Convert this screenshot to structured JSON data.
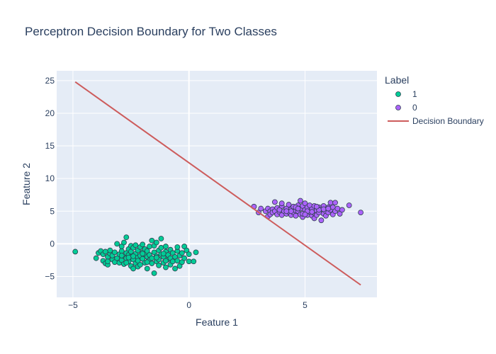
{
  "chart_data": {
    "type": "scatter",
    "title": "Perceptron Decision Boundary for Two Classes",
    "xlabel": "Feature 1",
    "ylabel": "Feature 2",
    "xlim": [
      -5.7,
      8.1
    ],
    "ylim": [
      -8.2,
      26.5
    ],
    "x_ticks": [
      -5,
      0,
      5
    ],
    "y_ticks": [
      -5,
      0,
      5,
      10,
      15,
      20,
      25
    ],
    "grid": true,
    "legend": {
      "title": "Label",
      "position": "right"
    },
    "colors": {
      "class_1": "#00cc96",
      "class_0": "#ab63fa",
      "boundary": "#cd5c5c",
      "plot_bg": "#e5ecf6",
      "marker_edge": "#2f3f4f"
    },
    "series": [
      {
        "name": "1",
        "mode": "markers",
        "color": "#00cc96",
        "points": [
          [
            -4.9,
            -1.2
          ],
          [
            -4.0,
            -2.2
          ],
          [
            -3.9,
            -1.4
          ],
          [
            -3.8,
            -1.1
          ],
          [
            -3.7,
            -2.6
          ],
          [
            -3.7,
            -1.6
          ],
          [
            -3.6,
            -3.0
          ],
          [
            -3.6,
            -1.2
          ],
          [
            -3.5,
            -2.0
          ],
          [
            -3.5,
            -3.2
          ],
          [
            -3.4,
            -1.5
          ],
          [
            -3.4,
            -1.0
          ],
          [
            -3.3,
            -2.4
          ],
          [
            -3.3,
            -1.8
          ],
          [
            -3.2,
            -2.8
          ],
          [
            -3.2,
            -1.3
          ],
          [
            -3.1,
            0.0
          ],
          [
            -3.1,
            -2.2
          ],
          [
            -3.0,
            -1.6
          ],
          [
            -3.0,
            -2.9
          ],
          [
            -2.9,
            -1.1
          ],
          [
            -2.9,
            -0.4
          ],
          [
            -2.9,
            -2.5
          ],
          [
            -2.8,
            0.2
          ],
          [
            -2.8,
            -1.9
          ],
          [
            -2.8,
            -3.1
          ],
          [
            -2.7,
            -1.4
          ],
          [
            -2.7,
            1.0
          ],
          [
            -2.7,
            -2.2
          ],
          [
            -2.6,
            -0.8
          ],
          [
            -2.6,
            -2.7
          ],
          [
            -2.6,
            -1.7
          ],
          [
            -2.5,
            -0.3
          ],
          [
            -2.5,
            -3.4
          ],
          [
            -2.5,
            -2.0
          ],
          [
            -2.5,
            -1.2
          ],
          [
            -2.4,
            -3.8
          ],
          [
            -2.4,
            -0.6
          ],
          [
            -2.4,
            -2.4
          ],
          [
            -2.3,
            -1.5
          ],
          [
            -2.3,
            -3.0
          ],
          [
            -2.3,
            -0.2
          ],
          [
            -2.2,
            -2.1
          ],
          [
            -2.2,
            -1.0
          ],
          [
            -2.2,
            -3.5
          ],
          [
            -2.2,
            -2.6
          ],
          [
            -2.1,
            -0.5
          ],
          [
            -2.1,
            -1.8
          ],
          [
            -2.1,
            -3.2
          ],
          [
            -2.0,
            -1.3
          ],
          [
            -2.0,
            -2.3
          ],
          [
            -2.0,
            -0.1
          ],
          [
            -1.9,
            -2.9
          ],
          [
            -1.9,
            -1.6
          ],
          [
            -1.9,
            -0.8
          ],
          [
            -1.8,
            -3.8
          ],
          [
            -1.8,
            -2.0
          ],
          [
            -1.8,
            -1.1
          ],
          [
            -1.7,
            -2.5
          ],
          [
            -1.7,
            -0.4
          ],
          [
            -1.7,
            -1.7
          ],
          [
            -1.6,
            0.5
          ],
          [
            -1.6,
            -3.0
          ],
          [
            -1.6,
            -2.2
          ],
          [
            -1.5,
            -4.5
          ],
          [
            -1.5,
            -1.3
          ],
          [
            -1.5,
            -0.3
          ],
          [
            -1.4,
            -2.7
          ],
          [
            -1.4,
            0.2
          ],
          [
            -1.4,
            -1.9
          ],
          [
            -1.3,
            -3.3
          ],
          [
            -1.3,
            -1.0
          ],
          [
            -1.3,
            -2.4
          ],
          [
            -1.2,
            0.8
          ],
          [
            -1.2,
            -1.6
          ],
          [
            -1.2,
            -0.6
          ],
          [
            -1.1,
            -2.9
          ],
          [
            -1.1,
            -2.0
          ],
          [
            -1.0,
            -3.6
          ],
          [
            -1.0,
            -1.2
          ],
          [
            -1.0,
            -0.4
          ],
          [
            -0.9,
            -2.4
          ],
          [
            -0.9,
            -1.7
          ],
          [
            -0.8,
            -3.2
          ],
          [
            -0.8,
            -0.9
          ],
          [
            -0.8,
            -2.2
          ],
          [
            -0.7,
            -2.7
          ],
          [
            -0.7,
            -1.4
          ],
          [
            -0.6,
            -3.8
          ],
          [
            -0.6,
            -2.0
          ],
          [
            -0.5,
            -1.1
          ],
          [
            -0.5,
            -2.6
          ],
          [
            -0.5,
            -0.5
          ],
          [
            -0.4,
            -3.4
          ],
          [
            -0.4,
            -1.8
          ],
          [
            -0.3,
            -2.8
          ],
          [
            -0.3,
            -1.4
          ],
          [
            -0.2,
            -2.2
          ],
          [
            -0.2,
            -0.4
          ],
          [
            -0.1,
            -1.0
          ],
          [
            0.0,
            -2.7
          ],
          [
            0.0,
            -1.6
          ],
          [
            0.2,
            -2.7
          ],
          [
            0.3,
            -1.3
          ],
          [
            -2.6,
            -2.1
          ],
          [
            -2.0,
            -1.5
          ],
          [
            -1.4,
            -2.1
          ],
          [
            -2.9,
            -1.8
          ],
          [
            -3.5,
            -2.7
          ],
          [
            -1.1,
            -1.5
          ],
          [
            -2.4,
            -1.9
          ],
          [
            -1.8,
            -2.8
          ],
          [
            -2.7,
            -2.9
          ],
          [
            -1.0,
            -2.6
          ]
        ]
      },
      {
        "name": "0",
        "mode": "markers",
        "color": "#ab63fa",
        "points": [
          [
            2.8,
            5.7
          ],
          [
            3.0,
            4.8
          ],
          [
            3.1,
            5.4
          ],
          [
            3.3,
            5.0
          ],
          [
            3.4,
            4.2
          ],
          [
            3.4,
            5.4
          ],
          [
            3.5,
            5.0
          ],
          [
            3.5,
            4.5
          ],
          [
            3.6,
            5.3
          ],
          [
            3.6,
            4.8
          ],
          [
            3.7,
            6.4
          ],
          [
            3.7,
            5.0
          ],
          [
            3.8,
            4.5
          ],
          [
            3.8,
            5.5
          ],
          [
            3.9,
            4.9
          ],
          [
            3.9,
            5.2
          ],
          [
            4.0,
            4.4
          ],
          [
            4.0,
            5.8
          ],
          [
            4.0,
            6.2
          ],
          [
            4.1,
            5.0
          ],
          [
            4.2,
            4.6
          ],
          [
            4.2,
            5.4
          ],
          [
            4.3,
            4.9
          ],
          [
            4.3,
            6.0
          ],
          [
            4.4,
            4.4
          ],
          [
            4.4,
            5.3
          ],
          [
            4.5,
            5.7
          ],
          [
            4.5,
            4.8
          ],
          [
            4.6,
            5.1
          ],
          [
            4.6,
            4.3
          ],
          [
            4.7,
            5.9
          ],
          [
            4.7,
            5.0
          ],
          [
            4.8,
            4.5
          ],
          [
            4.8,
            6.6
          ],
          [
            4.8,
            5.4
          ],
          [
            4.9,
            4.1
          ],
          [
            4.9,
            5.8
          ],
          [
            5.0,
            4.8
          ],
          [
            5.0,
            5.2
          ],
          [
            5.0,
            6.2
          ],
          [
            5.1,
            4.4
          ],
          [
            5.1,
            5.6
          ],
          [
            5.2,
            4.9
          ],
          [
            5.2,
            5.9
          ],
          [
            5.3,
            4.3
          ],
          [
            5.3,
            5.3
          ],
          [
            5.4,
            4.7
          ],
          [
            5.4,
            5.8
          ],
          [
            5.4,
            3.9
          ],
          [
            5.5,
            5.1
          ],
          [
            5.5,
            4.4
          ],
          [
            5.6,
            5.6
          ],
          [
            5.6,
            4.8
          ],
          [
            5.7,
            3.6
          ],
          [
            5.7,
            5.3
          ],
          [
            5.8,
            4.6
          ],
          [
            5.8,
            5.8
          ],
          [
            5.9,
            5.0
          ],
          [
            5.9,
            4.3
          ],
          [
            6.0,
            5.6
          ],
          [
            6.0,
            4.8
          ],
          [
            6.1,
            5.2
          ],
          [
            6.1,
            6.3
          ],
          [
            6.2,
            4.5
          ],
          [
            6.2,
            5.6
          ],
          [
            6.3,
            5.0
          ],
          [
            6.3,
            6.3
          ],
          [
            6.4,
            5.4
          ],
          [
            6.5,
            4.6
          ],
          [
            6.6,
            5.2
          ],
          [
            6.9,
            5.9
          ],
          [
            7.4,
            4.8
          ],
          [
            4.6,
            5.6
          ],
          [
            5.1,
            5.0
          ],
          [
            5.6,
            5.2
          ],
          [
            4.9,
            4.6
          ],
          [
            5.3,
            4.9
          ],
          [
            5.8,
            5.3
          ],
          [
            4.4,
            5.0
          ],
          [
            6.0,
            5.4
          ],
          [
            4.7,
            5.4
          ],
          [
            5.5,
            5.7
          ],
          [
            5.0,
            4.5
          ],
          [
            4.2,
            5.0
          ]
        ]
      },
      {
        "name": "Decision Boundary",
        "mode": "line",
        "color": "#cd5c5c",
        "points": [
          [
            -4.9,
            24.8
          ],
          [
            7.4,
            -6.3
          ]
        ]
      }
    ]
  }
}
